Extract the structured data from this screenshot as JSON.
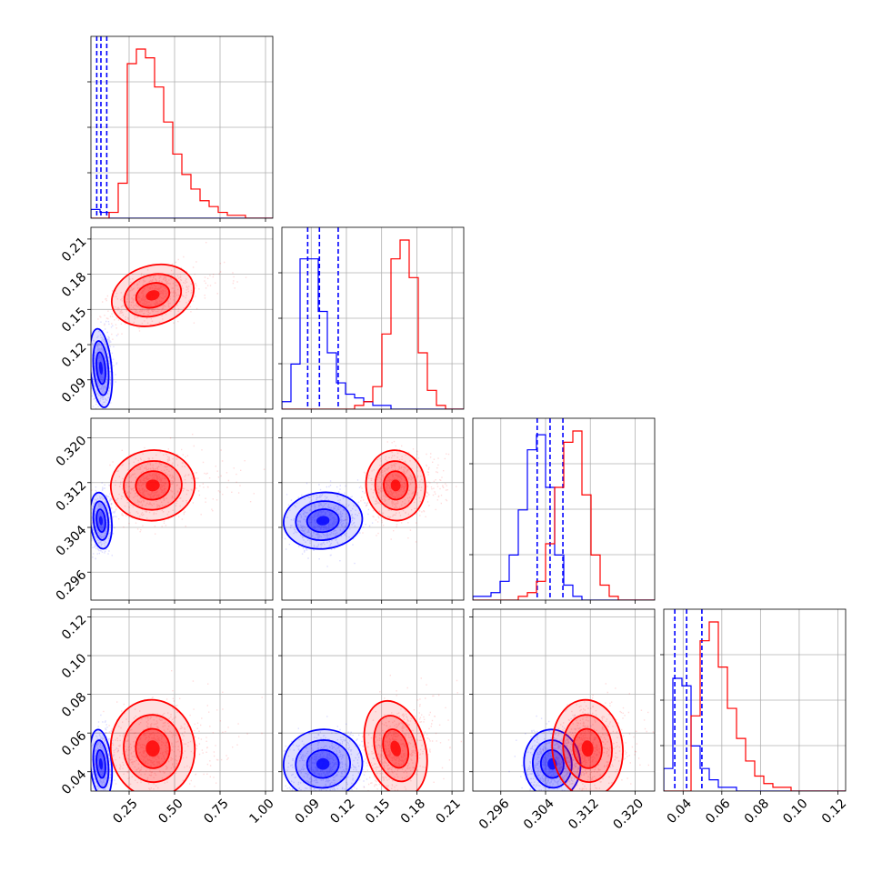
{
  "chart_data": {
    "type": "corner",
    "grid": true,
    "title": "",
    "parameters": [
      {
        "range": [
          0.04,
          1.04
        ],
        "ticks": [
          0.25,
          0.5,
          0.75,
          1.0
        ],
        "tick_labels": [
          "0.25",
          "0.50",
          "0.75",
          "1.00"
        ]
      },
      {
        "range": [
          0.065,
          0.22
        ],
        "ticks": [
          0.09,
          0.12,
          0.15,
          0.18,
          0.21
        ],
        "tick_labels": [
          "0.09",
          "0.12",
          "0.15",
          "0.18",
          "0.21"
        ]
      },
      {
        "range": [
          0.291,
          0.3235
        ],
        "ticks": [
          0.296,
          0.304,
          0.312,
          0.32
        ],
        "tick_labels": [
          "0.296",
          "0.304",
          "0.312",
          "0.320"
        ]
      },
      {
        "range": [
          0.03,
          0.124
        ],
        "ticks": [
          0.04,
          0.06,
          0.08,
          0.1,
          0.12
        ],
        "tick_labels": [
          "0.04",
          "0.06",
          "0.08",
          "0.10",
          "0.12"
        ]
      }
    ],
    "series": [
      {
        "color": "#0000ff",
        "medians": [
          0.095,
          0.1,
          0.3052,
          0.044
        ],
        "sigmas": [
          0.028,
          0.016,
          0.0024,
          0.0085
        ],
        "quantile_lines": [
          [
            0.072,
            0.095,
            0.127
          ],
          [
            0.087,
            0.097,
            0.113
          ],
          [
            0.3025,
            0.3048,
            0.3071
          ],
          [
            0.0357,
            0.0418,
            0.0497
          ]
        ],
        "histograms": [
          [
            3,
            2,
            0,
            0,
            0,
            0,
            0,
            0,
            0,
            0,
            0,
            0,
            0,
            0,
            0,
            0,
            0,
            0,
            0,
            0
          ],
          [
            2,
            12,
            40,
            40,
            26,
            15,
            7,
            4,
            3,
            2,
            1,
            1,
            0,
            0,
            0,
            0,
            0,
            0,
            0,
            0
          ],
          [
            1,
            1,
            2,
            5,
            12,
            24,
            40,
            44,
            30,
            12,
            4,
            1,
            0,
            0,
            0,
            0,
            0,
            0,
            0,
            0
          ],
          [
            6,
            30,
            28,
            12,
            6,
            3,
            1,
            1,
            0,
            0,
            0,
            0,
            0,
            0,
            0,
            0,
            0,
            0,
            0,
            0
          ]
        ]
      },
      {
        "color": "#ff0000",
        "medians": [
          0.38,
          0.162,
          0.3115,
          0.052
        ],
        "sigmas": [
          0.11,
          0.012,
          0.003,
          0.012
        ],
        "quantile_lines": [],
        "histograms": [
          [
            0,
            0,
            2,
            12,
            53,
            58,
            55,
            45,
            33,
            22,
            15,
            10,
            6,
            4,
            2,
            1,
            1,
            0,
            0,
            0
          ],
          [
            0,
            0,
            0,
            0,
            0,
            0,
            0,
            0,
            1,
            2,
            6,
            20,
            40,
            45,
            35,
            15,
            5,
            1,
            0,
            0
          ],
          [
            0,
            0,
            0,
            0,
            0,
            1,
            2,
            5,
            15,
            30,
            42,
            45,
            28,
            12,
            4,
            1,
            0,
            0,
            0,
            0
          ],
          [
            0,
            0,
            0,
            20,
            40,
            45,
            33,
            22,
            14,
            8,
            4,
            2,
            1,
            1,
            0,
            0,
            0,
            0,
            0,
            0
          ]
        ]
      }
    ]
  }
}
